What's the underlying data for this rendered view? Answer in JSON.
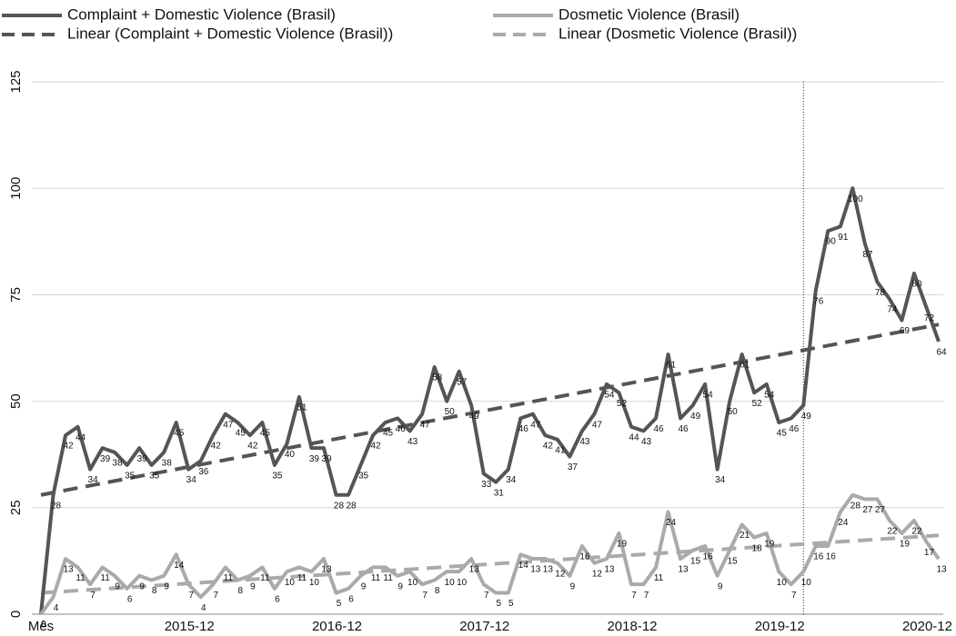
{
  "chart_data": {
    "type": "line",
    "categories": [
      "Mês",
      null,
      null,
      null,
      null,
      null,
      null,
      null,
      null,
      null,
      null,
      null,
      "2015-12",
      null,
      null,
      null,
      null,
      null,
      null,
      null,
      null,
      null,
      null,
      null,
      "2016-12",
      null,
      null,
      null,
      null,
      null,
      null,
      null,
      null,
      null,
      null,
      null,
      "2017-12",
      null,
      null,
      null,
      null,
      null,
      null,
      null,
      null,
      null,
      null,
      null,
      "2018-12",
      null,
      null,
      null,
      null,
      null,
      null,
      null,
      null,
      null,
      null,
      null,
      "2019-12",
      null,
      null,
      null,
      null,
      null,
      null,
      null,
      null,
      null,
      null,
      null,
      "2020-12",
      null
    ],
    "series": [
      {
        "name": "Complaint +  Domestic Violence (Brasil)",
        "color": "#555555",
        "values": [
          0,
          28,
          42,
          44,
          34,
          39,
          38,
          35,
          39,
          35,
          38,
          45,
          34,
          36,
          42,
          47,
          45,
          42,
          45,
          35,
          40,
          51,
          39,
          39,
          28,
          28,
          35,
          42,
          45,
          46,
          43,
          47,
          58,
          50,
          57,
          49,
          33,
          31,
          34,
          46,
          47,
          42,
          41,
          37,
          43,
          47,
          54,
          52,
          44,
          43,
          46,
          61,
          46,
          49,
          54,
          34,
          50,
          61,
          52,
          54,
          45,
          46,
          49,
          76,
          90,
          91,
          100,
          87,
          78,
          74,
          69,
          80,
          72,
          64
        ]
      },
      {
        "name": "Dosmetic Violence (Brasil)",
        "color": "#aaaaaa",
        "values": [
          0,
          4,
          13,
          11,
          7,
          11,
          9,
          6,
          9,
          8,
          9,
          14,
          7,
          4,
          7,
          11,
          8,
          9,
          11,
          6,
          10,
          11,
          10,
          13,
          5,
          6,
          9,
          11,
          11,
          9,
          10,
          7,
          8,
          10,
          10,
          13,
          7,
          5,
          5,
          14,
          13,
          13,
          12,
          9,
          16,
          12,
          13,
          19,
          7,
          7,
          11,
          24,
          13,
          15,
          16,
          9,
          15,
          21,
          18,
          19,
          10,
          7,
          10,
          16,
          16,
          24,
          28,
          27,
          27,
          22,
          19,
          22,
          17,
          13
        ]
      }
    ],
    "trendlines": [
      {
        "name": "Linear (Complaint +  Domestic Violence (Brasil))",
        "color": "#555555",
        "values": [
          28,
          68
        ]
      },
      {
        "name": "Linear (Dosmetic Violence (Brasil))",
        "color": "#aaaaaa",
        "values": [
          5,
          18.5
        ]
      }
    ],
    "vline_category": 62,
    "ylim": [
      0,
      125
    ],
    "yticks": [
      0,
      25,
      50,
      75,
      100,
      125
    ],
    "grid": true
  }
}
